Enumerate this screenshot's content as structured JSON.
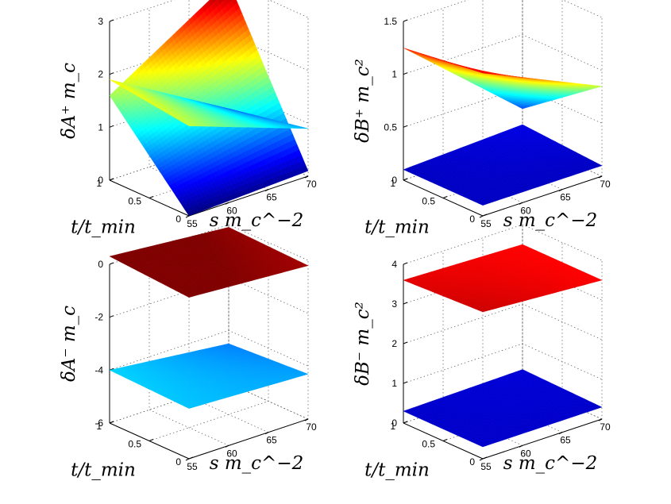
{
  "chart_data": [
    {
      "type": "surface3d",
      "zlabel": "δA⁺ m_c",
      "xlabel": "s m_c^−2",
      "ylabel": "t/t_min",
      "xlim": [
        55,
        70
      ],
      "ylim": [
        0,
        1
      ],
      "zlim": [
        0,
        3
      ],
      "xticks": [
        "55",
        "60",
        "65",
        "70"
      ],
      "yticks": [
        "0",
        "0.5",
        "1"
      ],
      "zticks": [
        "0",
        "1",
        "2",
        "3"
      ],
      "surfaces": [
        {
          "corners": {
            "s55_t0": 0.0,
            "s70_t0": 0.1,
            "s55_t1": 1.6,
            "s70_t1": 3.0
          }
        },
        {
          "corners": {
            "s55_t0": 1.7,
            "s70_t0": 0.9,
            "s55_t1": 1.9,
            "s70_t1": 0.6
          }
        }
      ]
    },
    {
      "type": "surface3d",
      "zlabel": "δB⁺ m_c²",
      "xlabel": "s m_c^−2",
      "ylabel": "t/t_min",
      "xlim": [
        55,
        70
      ],
      "ylim": [
        0,
        1
      ],
      "zlim": [
        0,
        1.5
      ],
      "xticks": [
        "55",
        "60",
        "65",
        "70"
      ],
      "yticks": [
        "0",
        "0.5",
        "1"
      ],
      "zticks": [
        "0",
        "0.5",
        "1",
        "1.5"
      ],
      "surfaces": [
        {
          "corners": {
            "s55_t0": 0.1,
            "s70_t0": 0.1,
            "s55_t1": 0.1,
            "s70_t1": 0.15
          }
        },
        {
          "corners": {
            "s55_t0": 1.35,
            "s70_t0": 0.85,
            "s55_t1": 1.25,
            "s70_t1": 0.3
          }
        }
      ]
    },
    {
      "type": "surface3d",
      "zlabel": "δA⁻ m_c",
      "xlabel": "s m_c^−2",
      "ylabel": "t/t_min",
      "xlim": [
        55,
        70
      ],
      "ylim": [
        0,
        1
      ],
      "zlim": [
        -6,
        0
      ],
      "xticks": [
        "55",
        "60",
        "65",
        "70"
      ],
      "yticks": [
        "0",
        "0.5",
        "1"
      ],
      "zticks": [
        "-6",
        "-4",
        "-2",
        "0"
      ],
      "surfaces": [
        {
          "corners": {
            "s55_t0": -4.1,
            "s70_t0": -4.3,
            "s55_t1": -4.0,
            "s70_t1": -4.5
          }
        },
        {
          "corners": {
            "s55_t0": 0.1,
            "s70_t0": -0.2,
            "s55_t1": 0.3,
            "s70_t1": -0.1
          }
        }
      ]
    },
    {
      "type": "surface3d",
      "zlabel": "δB⁻ m_c²",
      "xlabel": "s m_c^−2",
      "ylabel": "t/t_min",
      "xlim": [
        55,
        70
      ],
      "ylim": [
        0,
        1
      ],
      "zlim": [
        0,
        4
      ],
      "xticks": [
        "55",
        "60",
        "65",
        "70"
      ],
      "yticks": [
        "0",
        "0.5",
        "1"
      ],
      "zticks": [
        "0",
        "1",
        "2",
        "3",
        "4"
      ],
      "surfaces": [
        {
          "corners": {
            "s55_t0": 0.3,
            "s70_t0": 0.3,
            "s55_t1": 0.3,
            "s70_t1": 0.35
          }
        },
        {
          "corners": {
            "s55_t0": 3.7,
            "s70_t0": 3.5,
            "s55_t1": 3.6,
            "s70_t1": 3.5
          }
        }
      ]
    }
  ]
}
